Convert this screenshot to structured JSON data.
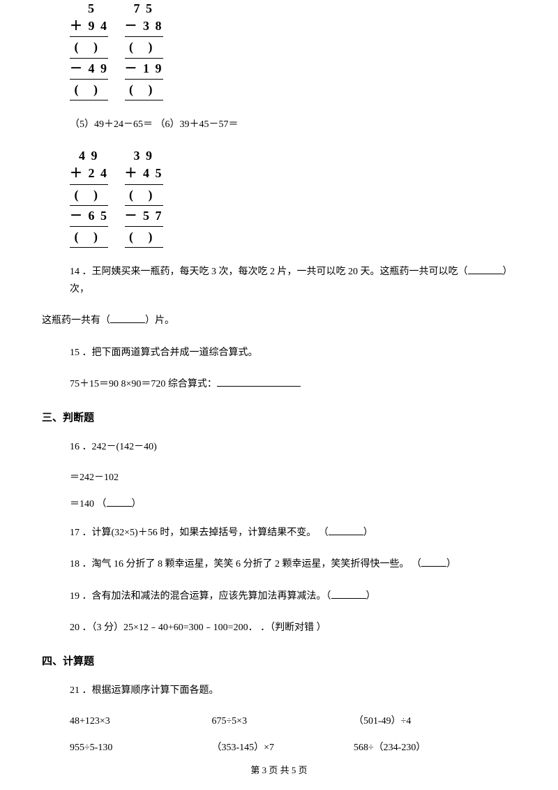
{
  "math1": {
    "col1": {
      "r1": "    5",
      "r2": "＋ 9 4",
      "r3": " (   )",
      "r4": "－ 4 9",
      "r5": " (   )"
    },
    "col2": {
      "r1": "  7 5",
      "r2": "－ 3 8",
      "r3": " (   )",
      "r4": "－ 1 9",
      "r5": " (   )"
    }
  },
  "q5_6": "（5）49＋24－65＝    （6）39＋45－57＝",
  "math2": {
    "col1": {
      "r1": "  4 9",
      "r2": "＋ 2 4",
      "r3": " (   )",
      "r4": "－ 6 5",
      "r5": " (   )"
    },
    "col2": {
      "r1": "  3 9",
      "r2": "＋ 4 5",
      "r3": " (   )",
      "r4": "－ 5 7",
      "r5": " (   )"
    }
  },
  "q14_a": "14 ．王阿姨买来一瓶药，每天吃 3 次，每次吃 2 片，一共可以吃 20 天。这瓶药一共可以吃（",
  "q14_b": "）次，",
  "q14_c": "这瓶药一共有（",
  "q14_d": "）片。",
  "q15": "15 ．把下面两道算式合并成一道综合算式。",
  "q15_expr": "75＋15＝90 8×90＝720 综合算式：",
  "sec3": "三、判断题",
  "q16": "16 ．242－(142－40)",
  "q16_b": "＝242－102",
  "q16_c_a": "＝140    （",
  "q16_c_b": "）",
  "q17_a": "17 ．计算(32×5)＋56 时，如果去掉括号，计算结果不变。    （",
  "q17_b": "）",
  "q18_a": "18 ．淘气 16 分折了 8 颗幸运星，笑笑 6 分折了 2 颗幸运星，笑笑折得快一些。    （",
  "q18_b": "）",
  "q19_a": "19 ．含有加法和减法的混合运算，应该先算加法再算减法。（",
  "q19_b": "）",
  "q20": "20 ．（3 分）25×12﹣40+60=300﹣100=200．      ．（判断对错 ）",
  "sec4": "四、计算题",
  "q21": "21 ．根据运算顺序计算下面各题。",
  "calc": {
    "r1c1": "48+123×3",
    "r1c2": "675÷5×3",
    "r1c3": "（501-49）÷4",
    "r2c1": "955÷5-130",
    "r2c2": "（353-145）×7",
    "r2c3": "568÷（234-230）"
  },
  "footer": "第 3 页 共 5 页"
}
